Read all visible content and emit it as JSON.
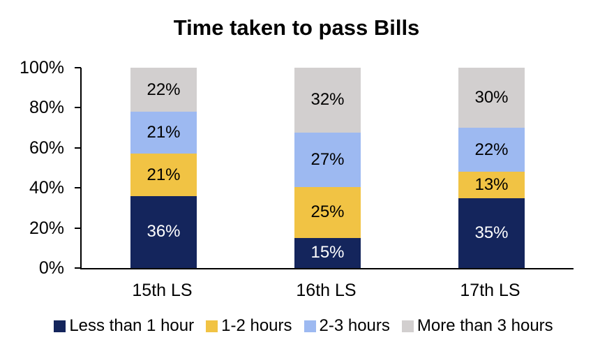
{
  "chart_data": {
    "type": "bar",
    "stacked": true,
    "title": "Time taken to pass Bills",
    "categories": [
      "15th LS",
      "16th LS",
      "17th LS"
    ],
    "series": [
      {
        "name": "Less than 1 hour",
        "color": "#14255C",
        "label_color": "#FFFFFF",
        "values": [
          36,
          15,
          35
        ]
      },
      {
        "name": "1-2 hours",
        "color": "#F1C344",
        "label_color": "#000000",
        "values": [
          21,
          25,
          13
        ]
      },
      {
        "name": "2-3 hours",
        "color": "#9DB9F1",
        "label_color": "#000000",
        "values": [
          21,
          27,
          22
        ]
      },
      {
        "name": "More than 3 hours",
        "color": "#D2CFCF",
        "label_color": "#000000",
        "values": [
          22,
          32,
          30
        ]
      }
    ],
    "data_label_suffix": "%",
    "xlabel": "",
    "ylabel": "",
    "y_axis": {
      "min": 0,
      "max": 100,
      "tick_labels_bottom_to_top": [
        "0%",
        "20%",
        "40%",
        "60%",
        "80%",
        "100%"
      ]
    },
    "grid": false,
    "legend_position": "bottom",
    "axis_color": "#000000",
    "background_color": "#FFFFFF"
  }
}
